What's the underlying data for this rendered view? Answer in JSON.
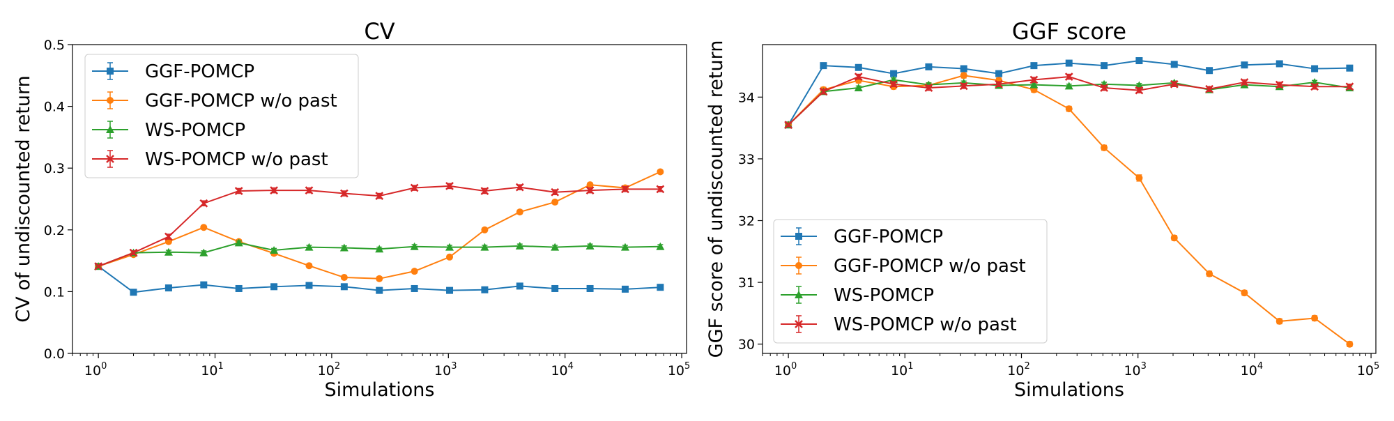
{
  "chart_data": [
    {
      "type": "line",
      "title": "CV",
      "xlabel": "Simulations",
      "ylabel": "CV of undiscounted return",
      "xscale": "log",
      "xlim": [
        0.6,
        110000
      ],
      "ylim": [
        0.0,
        0.5
      ],
      "x": [
        1,
        2,
        4,
        8,
        16,
        32,
        64,
        128,
        256,
        512,
        1024,
        2048,
        4096,
        8192,
        16384,
        32768,
        65536
      ],
      "xticks": [
        {
          "value": 1,
          "label": "10",
          "exp": "0"
        },
        {
          "value": 10,
          "label": "10",
          "exp": "1"
        },
        {
          "value": 100,
          "label": "10",
          "exp": "2"
        },
        {
          "value": 1000,
          "label": "10",
          "exp": "3"
        },
        {
          "value": 10000,
          "label": "10",
          "exp": "4"
        },
        {
          "value": 100000,
          "label": "10",
          "exp": "5"
        }
      ],
      "yticks": [
        {
          "value": 0.0,
          "label": "0.0"
        },
        {
          "value": 0.1,
          "label": "0.1"
        },
        {
          "value": 0.2,
          "label": "0.2"
        },
        {
          "value": 0.3,
          "label": "0.3"
        },
        {
          "value": 0.4,
          "label": "0.4"
        },
        {
          "value": 0.5,
          "label": "0.5"
        }
      ],
      "grid": false,
      "legend_position": "upper-left",
      "series": [
        {
          "name": "GGF-POMCP",
          "color": "#1f77b4",
          "marker": "square",
          "values": [
            0.141,
            0.099,
            0.106,
            0.111,
            0.105,
            0.108,
            0.11,
            0.108,
            0.102,
            0.105,
            0.102,
            0.103,
            0.109,
            0.105,
            0.105,
            0.104,
            0.107
          ],
          "errors": [
            0.002,
            0.002,
            0.002,
            0.002,
            0.002,
            0.002,
            0.002,
            0.002,
            0.002,
            0.002,
            0.002,
            0.002,
            0.002,
            0.002,
            0.002,
            0.002,
            0.002
          ]
        },
        {
          "name": "GGF-POMCP w/o past",
          "color": "#ff7f0e",
          "marker": "circle",
          "values": [
            0.141,
            0.16,
            0.181,
            0.204,
            0.181,
            0.162,
            0.142,
            0.123,
            0.121,
            0.133,
            0.156,
            0.2,
            0.229,
            0.245,
            0.273,
            0.268,
            0.294
          ],
          "errors": [
            0.002,
            0.003,
            0.003,
            0.003,
            0.003,
            0.003,
            0.003,
            0.003,
            0.003,
            0.003,
            0.003,
            0.003,
            0.003,
            0.003,
            0.003,
            0.003,
            0.003
          ]
        },
        {
          "name": "WS-POMCP",
          "color": "#2ca02c",
          "marker": "triangle",
          "values": [
            0.141,
            0.163,
            0.164,
            0.163,
            0.179,
            0.167,
            0.172,
            0.171,
            0.169,
            0.173,
            0.172,
            0.172,
            0.174,
            0.172,
            0.174,
            0.172,
            0.173
          ],
          "errors": [
            0.002,
            0.003,
            0.003,
            0.003,
            0.003,
            0.003,
            0.003,
            0.003,
            0.003,
            0.003,
            0.003,
            0.003,
            0.003,
            0.003,
            0.003,
            0.003,
            0.003
          ]
        },
        {
          "name": "WS-POMCP w/o past",
          "color": "#d62728",
          "marker": "x",
          "values": [
            0.141,
            0.163,
            0.189,
            0.243,
            0.263,
            0.264,
            0.264,
            0.259,
            0.255,
            0.268,
            0.271,
            0.263,
            0.269,
            0.261,
            0.264,
            0.266,
            0.266
          ],
          "errors": [
            0.002,
            0.003,
            0.004,
            0.004,
            0.004,
            0.004,
            0.004,
            0.004,
            0.004,
            0.004,
            0.004,
            0.004,
            0.004,
            0.004,
            0.004,
            0.004,
            0.004
          ]
        }
      ]
    },
    {
      "type": "line",
      "title": "GGF score",
      "xlabel": "Simulations",
      "ylabel": "GGF score of undiscounted return",
      "xscale": "log",
      "xlim": [
        0.6,
        110000
      ],
      "ylim": [
        29.85,
        34.85
      ],
      "x": [
        1,
        2,
        4,
        8,
        16,
        32,
        64,
        128,
        256,
        512,
        1024,
        2048,
        4096,
        8192,
        16384,
        32768,
        65536
      ],
      "xticks": [
        {
          "value": 1,
          "label": "10",
          "exp": "0"
        },
        {
          "value": 10,
          "label": "10",
          "exp": "1"
        },
        {
          "value": 100,
          "label": "10",
          "exp": "2"
        },
        {
          "value": 1000,
          "label": "10",
          "exp": "3"
        },
        {
          "value": 10000,
          "label": "10",
          "exp": "4"
        },
        {
          "value": 100000,
          "label": "10",
          "exp": "5"
        }
      ],
      "yticks": [
        {
          "value": 30,
          "label": "30"
        },
        {
          "value": 31,
          "label": "31"
        },
        {
          "value": 32,
          "label": "32"
        },
        {
          "value": 33,
          "label": "33"
        },
        {
          "value": 34,
          "label": "34"
        }
      ],
      "grid": false,
      "legend_position": "lower-left",
      "series": [
        {
          "name": "GGF-POMCP",
          "color": "#1f77b4",
          "marker": "square",
          "values": [
            33.55,
            34.51,
            34.48,
            34.38,
            34.49,
            34.46,
            34.38,
            34.51,
            34.55,
            34.51,
            34.59,
            34.53,
            34.43,
            34.52,
            34.54,
            34.46,
            34.47
          ],
          "errors": [
            0.03,
            0.03,
            0.03,
            0.03,
            0.03,
            0.03,
            0.03,
            0.03,
            0.03,
            0.03,
            0.03,
            0.03,
            0.03,
            0.03,
            0.03,
            0.03,
            0.03
          ]
        },
        {
          "name": "GGF-POMCP w/o past",
          "color": "#ff7f0e",
          "marker": "circle",
          "values": [
            33.55,
            34.12,
            34.27,
            34.17,
            34.19,
            34.35,
            34.27,
            34.12,
            33.81,
            33.18,
            32.69,
            31.72,
            31.14,
            30.83,
            30.37,
            30.42,
            30.0
          ],
          "errors": [
            0.04,
            0.04,
            0.04,
            0.04,
            0.04,
            0.04,
            0.04,
            0.04,
            0.04,
            0.04,
            0.05,
            0.04,
            0.04,
            0.04,
            0.04,
            0.04,
            0.04
          ]
        },
        {
          "name": "WS-POMCP",
          "color": "#2ca02c",
          "marker": "triangle",
          "values": [
            33.55,
            34.09,
            34.15,
            34.28,
            34.2,
            34.23,
            34.19,
            34.2,
            34.18,
            34.21,
            34.19,
            34.23,
            34.12,
            34.2,
            34.17,
            34.24,
            34.15
          ],
          "errors": [
            0.03,
            0.03,
            0.03,
            0.03,
            0.03,
            0.03,
            0.03,
            0.03,
            0.03,
            0.03,
            0.03,
            0.03,
            0.03,
            0.03,
            0.03,
            0.03,
            0.03
          ]
        },
        {
          "name": "WS-POMCP w/o past",
          "color": "#d62728",
          "marker": "x",
          "values": [
            33.55,
            34.09,
            34.33,
            34.21,
            34.15,
            34.18,
            34.21,
            34.28,
            34.33,
            34.15,
            34.11,
            34.21,
            34.13,
            34.24,
            34.2,
            34.17,
            34.17
          ],
          "errors": [
            0.03,
            0.04,
            0.04,
            0.04,
            0.04,
            0.04,
            0.04,
            0.04,
            0.04,
            0.04,
            0.04,
            0.04,
            0.04,
            0.04,
            0.04,
            0.04,
            0.04
          ]
        }
      ]
    }
  ]
}
